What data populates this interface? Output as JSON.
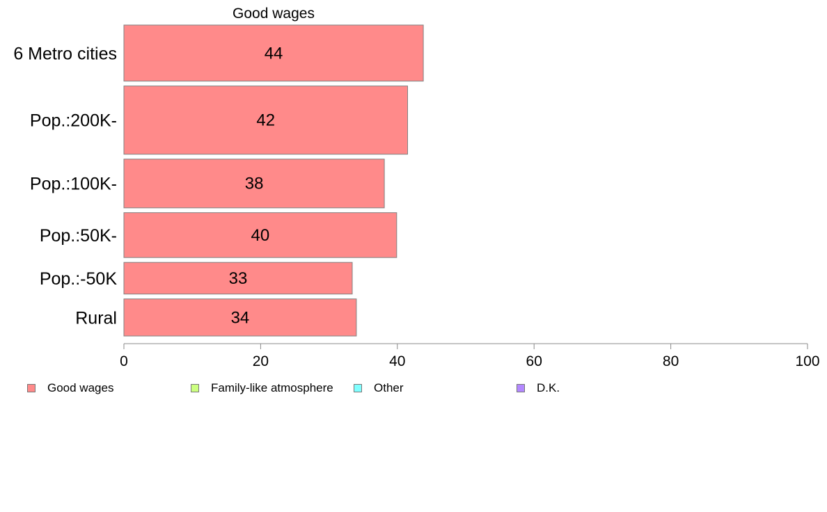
{
  "chart_data": {
    "type": "bar",
    "orientation": "horizontal",
    "title": "Good wages",
    "categories": [
      "6 Metro cities",
      "Pop.:200K-",
      "Pop.:100K-",
      "Pop.:50K-",
      "Pop.:-50K",
      "Rural"
    ],
    "category_weights": [
      1.15,
      1.4,
      1.0,
      0.92,
      0.65,
      0.76
    ],
    "values": [
      44,
      42,
      38,
      40,
      33,
      34
    ],
    "bar_values": [
      43.8,
      41.5,
      38.1,
      39.9,
      33.4,
      34.0
    ],
    "xlim": [
      0,
      100
    ],
    "xticks": [
      0,
      20,
      40,
      60,
      80,
      100
    ],
    "xlabel": "",
    "ylabel": "",
    "grid": false,
    "bar_color": "#ff8a8a",
    "bar_edge_color": "#808080",
    "legend": {
      "placement": "bottom",
      "items": [
        {
          "label": "Good wages",
          "color": "#ff8a8a"
        },
        {
          "label": "Family-like atmosphere",
          "color": "#ccff80"
        },
        {
          "label": "Other",
          "color": "#80ffff"
        },
        {
          "label": "D.K.",
          "color": "#b388ff"
        }
      ]
    }
  }
}
